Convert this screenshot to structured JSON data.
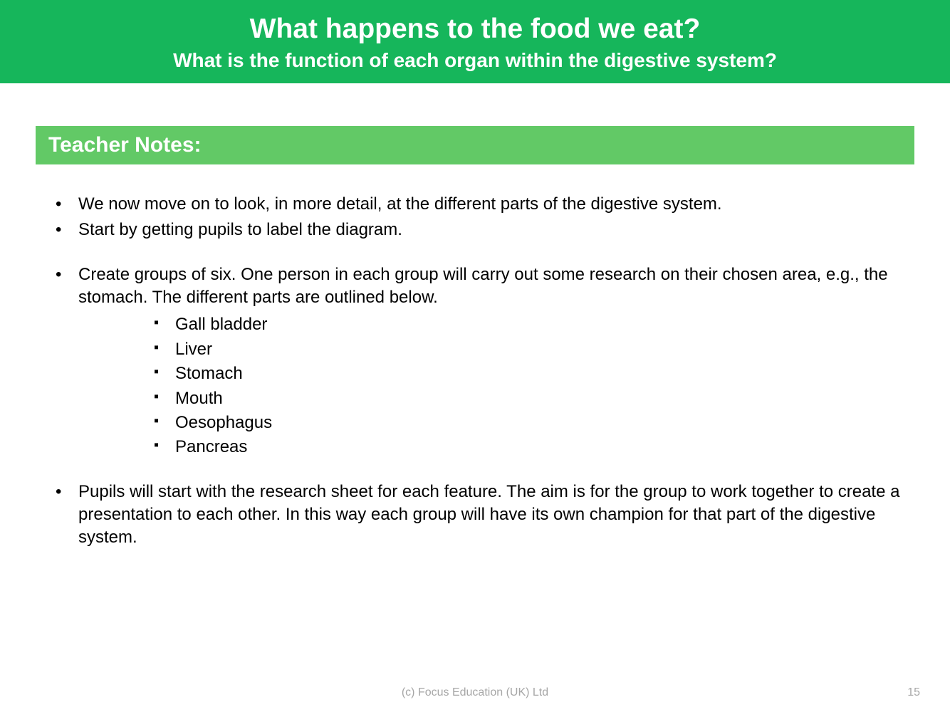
{
  "colors": {
    "header_bg": "#16b65b",
    "section_bg": "#62c966",
    "text_white": "#ffffff",
    "text_black": "#000000",
    "footer_gray": "#a6a6a6",
    "page_bg": "#ffffff"
  },
  "header": {
    "title": "What happens to the food we eat?",
    "subtitle": "What is the function of each organ within the digestive system?",
    "title_fontsize": 39,
    "subtitle_fontsize": 28
  },
  "section": {
    "label": "Teacher Notes:",
    "fontsize": 30
  },
  "bullets": {
    "fontsize": 24,
    "items": [
      {
        "text": "We now move on to look, in more detail, at the different parts of the digestive system.",
        "gap_before": false
      },
      {
        "text": "Start by getting pupils to label the diagram.",
        "gap_before": false
      },
      {
        "text": "Create groups of six. One person in each group will carry out some research on their chosen area, e.g., the stomach. The different parts are outlined below.",
        "gap_before": true,
        "sub": [
          "Gall bladder",
          "Liver",
          "Stomach",
          "Mouth",
          "Oesophagus",
          "Pancreas"
        ]
      },
      {
        "text": "Pupils will start with the research sheet for each feature. The aim is for the group to work together to create a presentation to each other. In this way each group will have its own champion for that part of the digestive system.",
        "gap_before": true
      }
    ]
  },
  "footer": {
    "copyright": "(c) Focus Education (UK) Ltd",
    "page_number": "15"
  }
}
